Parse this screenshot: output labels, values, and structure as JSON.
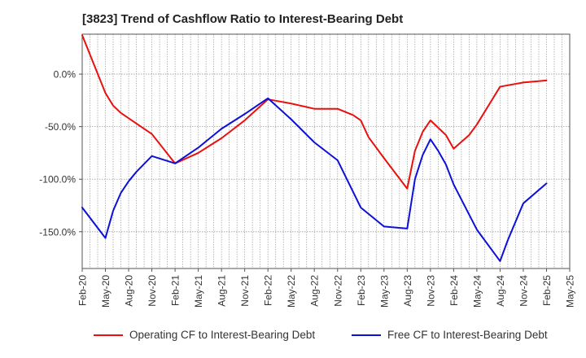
{
  "chart_data": {
    "type": "line",
    "title": "[3823]  Trend of Cashflow Ratio to Interest-Bearing Debt",
    "xlabel": "",
    "ylabel": "",
    "x_ticks": [
      "Feb-20",
      "May-20",
      "Aug-20",
      "Nov-20",
      "Feb-21",
      "May-21",
      "Aug-21",
      "Nov-21",
      "Feb-22",
      "May-22",
      "Aug-22",
      "Nov-22",
      "Feb-23",
      "May-23",
      "Aug-23",
      "Nov-23",
      "Feb-24",
      "May-24",
      "Aug-24",
      "Nov-24",
      "Feb-25",
      "May-25"
    ],
    "x_range": [
      "2020-02",
      "2025-05"
    ],
    "y_ticks": [
      0,
      -50,
      -100,
      -150
    ],
    "y_tick_labels": [
      "0.0%",
      "-50.0%",
      "-100.0%",
      "-150.0%"
    ],
    "ylim": [
      -185,
      38
    ],
    "grid": "dotted vertical and horizontal",
    "legend_position": "bottom",
    "series": [
      {
        "name": "Operating CF to Interest-Bearing Debt",
        "color": "#e8110d",
        "points": [
          [
            "2020-02",
            37
          ],
          [
            "2020-05",
            -18
          ],
          [
            "2020-06",
            -30
          ],
          [
            "2020-07",
            -37
          ],
          [
            "2020-09",
            -47
          ],
          [
            "2020-11",
            -57
          ],
          [
            "2021-02",
            -85
          ],
          [
            "2021-05",
            -75
          ],
          [
            "2021-08",
            -61
          ],
          [
            "2021-11",
            -44
          ],
          [
            "2022-02",
            -24
          ],
          [
            "2022-05",
            -28
          ],
          [
            "2022-08",
            -33
          ],
          [
            "2022-11",
            -33
          ],
          [
            "2023-01",
            -39
          ],
          [
            "2023-02",
            -44
          ],
          [
            "2023-03",
            -60
          ],
          [
            "2023-05",
            -80
          ],
          [
            "2023-08",
            -109
          ],
          [
            "2023-09",
            -73
          ],
          [
            "2023-10",
            -55
          ],
          [
            "2023-11",
            -44
          ],
          [
            "2024-01",
            -58
          ],
          [
            "2024-02",
            -71
          ],
          [
            "2024-04",
            -58
          ],
          [
            "2024-05",
            -48
          ],
          [
            "2024-08",
            -12
          ],
          [
            "2024-11",
            -8
          ],
          [
            "2025-02",
            -6
          ]
        ]
      },
      {
        "name": "Free CF to Interest-Bearing Debt",
        "color": "#0c10d8",
        "points": [
          [
            "2020-02",
            -127
          ],
          [
            "2020-05",
            -156
          ],
          [
            "2020-06",
            -130
          ],
          [
            "2020-07",
            -113
          ],
          [
            "2020-08",
            -102
          ],
          [
            "2020-09",
            -93
          ],
          [
            "2020-11",
            -78
          ],
          [
            "2021-02",
            -85
          ],
          [
            "2021-05",
            -70
          ],
          [
            "2021-08",
            -52
          ],
          [
            "2021-11",
            -38
          ],
          [
            "2022-02",
            -23
          ],
          [
            "2022-05",
            -43
          ],
          [
            "2022-08",
            -65
          ],
          [
            "2022-11",
            -82
          ],
          [
            "2022-12",
            -97
          ],
          [
            "2023-02",
            -127
          ],
          [
            "2023-05",
            -145
          ],
          [
            "2023-08",
            -147
          ],
          [
            "2023-09",
            -100
          ],
          [
            "2023-10",
            -77
          ],
          [
            "2023-11",
            -62
          ],
          [
            "2023-12",
            -73
          ],
          [
            "2024-01",
            -86
          ],
          [
            "2024-02",
            -105
          ],
          [
            "2024-05",
            -148
          ],
          [
            "2024-08",
            -178
          ],
          [
            "2024-09",
            -158
          ],
          [
            "2024-11",
            -123
          ],
          [
            "2025-02",
            -104
          ]
        ]
      }
    ]
  }
}
